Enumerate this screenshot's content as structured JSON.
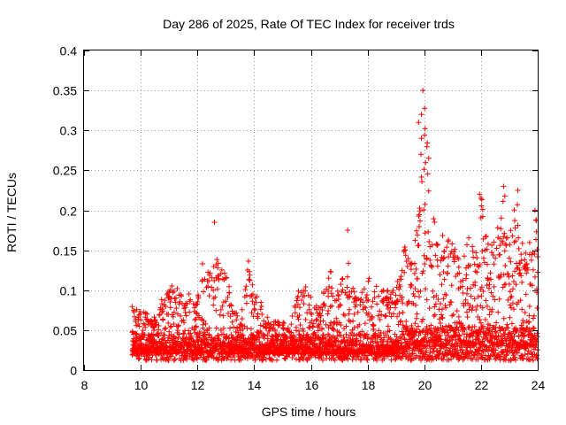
{
  "chart_data": {
    "type": "scatter",
    "title": "Day 286 of 2025, Rate Of TEC Index for receiver trds",
    "xlabel": "GPS time / hours",
    "ylabel": "ROTI / TECUs",
    "xlim": [
      8,
      24
    ],
    "ylim": [
      0,
      0.4
    ],
    "x_ticks": [
      8,
      10,
      12,
      14,
      16,
      18,
      20,
      22,
      24
    ],
    "y_ticks": [
      0,
      0.05,
      0.1,
      0.15,
      0.2,
      0.25,
      0.3,
      0.35,
      0.4
    ],
    "x_tick_labels": [
      "8",
      "10",
      "12",
      "14",
      "16",
      "18",
      "20",
      "22",
      "24"
    ],
    "y_tick_labels": [
      "0",
      "0.05",
      "0.1",
      "0.15",
      "0.2",
      "0.25",
      "0.3",
      "0.35",
      "0.4"
    ],
    "grid": true,
    "marker": "+",
    "marker_color": "#ff0000",
    "data_start_hour": 9.7,
    "data_end_hour": 24,
    "envelope": {
      "x": [
        9.7,
        10.5,
        11.0,
        11.5,
        12.0,
        12.2,
        12.5,
        12.7,
        13.0,
        13.5,
        13.8,
        14.0,
        14.5,
        15.0,
        15.3,
        15.6,
        15.9,
        16.3,
        16.7,
        17.0,
        17.3,
        17.6,
        18.0,
        18.5,
        19.0,
        19.3,
        19.6,
        19.8,
        19.9,
        20.0,
        20.3,
        20.6,
        21.0,
        21.3,
        21.6,
        21.9,
        22.0,
        22.3,
        22.6,
        22.8,
        23.0,
        23.3,
        23.5,
        23.7,
        23.9,
        24.0
      ],
      "y": [
        0.08,
        0.07,
        0.11,
        0.1,
        0.09,
        0.14,
        0.12,
        0.15,
        0.12,
        0.06,
        0.15,
        0.1,
        0.07,
        0.06,
        0.06,
        0.12,
        0.1,
        0.08,
        0.13,
        0.1,
        0.14,
        0.09,
        0.12,
        0.1,
        0.1,
        0.16,
        0.14,
        0.2,
        0.3,
        0.35,
        0.2,
        0.17,
        0.16,
        0.13,
        0.17,
        0.15,
        0.22,
        0.16,
        0.18,
        0.23,
        0.18,
        0.22,
        0.15,
        0.17,
        0.2,
        0.19
      ]
    },
    "notable_points": [
      {
        "x": 12.6,
        "y": 0.185
      },
      {
        "x": 17.3,
        "y": 0.175
      },
      {
        "x": 19.8,
        "y": 0.31
      },
      {
        "x": 19.9,
        "y": 0.32
      },
      {
        "x": 19.95,
        "y": 0.35
      },
      {
        "x": 19.9,
        "y": 0.29
      },
      {
        "x": 21.95,
        "y": 0.22
      },
      {
        "x": 22.0,
        "y": 0.215
      },
      {
        "x": 22.8,
        "y": 0.23
      },
      {
        "x": 23.3,
        "y": 0.225
      },
      {
        "x": 23.9,
        "y": 0.2
      }
    ]
  }
}
